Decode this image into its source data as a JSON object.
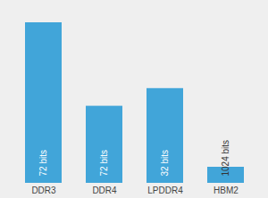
{
  "chart_data": {
    "type": "bar",
    "categories": [
      "DDR3",
      "DDR4",
      "LPDDR4",
      "HBM2"
    ],
    "values": [
      100,
      48,
      59,
      10
    ],
    "annotations": [
      "72 bits",
      "72 bits",
      "32 bits",
      "1024 bits"
    ],
    "color": "#41a5d9",
    "ylim": [
      0,
      100
    ],
    "tick_labels": "x",
    "grid": false
  }
}
